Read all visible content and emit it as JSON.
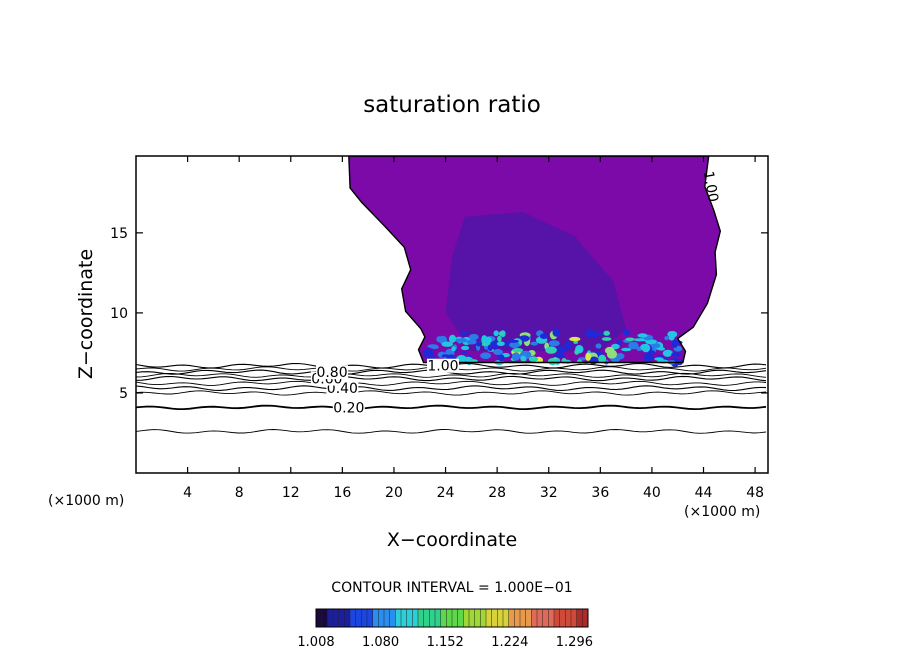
{
  "chart_data": {
    "type": "contour",
    "title": "saturation ratio",
    "xlabel": "X−coordinate",
    "ylabel": "Z−coordinate",
    "x_unit_label": "(×1000 m)",
    "y_unit_label": "(×1000 m)",
    "xlim": [
      0,
      49
    ],
    "ylim": [
      0,
      19.8
    ],
    "x_ticks": [
      4,
      8,
      12,
      16,
      20,
      24,
      28,
      32,
      36,
      40,
      44,
      48
    ],
    "y_ticks": [
      5,
      10,
      15
    ],
    "contour_interval_label": "CONTOUR INTERVAL = 1.000E−01",
    "contour_levels": [
      {
        "label": "0.20",
        "value": 0.2,
        "z": 4.1
      },
      {
        "label": "0.40",
        "value": 0.4,
        "z": 5.3
      },
      {
        "label": "0.60",
        "value": 0.6,
        "z": 5.9
      },
      {
        "label": "0.80",
        "value": 0.8,
        "z": 6.3
      },
      {
        "label": "1.00",
        "value": 1.0,
        "z": 6.7
      }
    ],
    "unlabeled_contours_z": [
      2.6,
      5.0,
      5.6,
      6.1,
      6.5
    ],
    "filled_region": {
      "description_value": "saturation ratio >= 1.0",
      "base_color": "#7b0aa8",
      "core_color": "#3a1aa8",
      "turbulent_layer_colors": [
        "#1e2ad8",
        "#2b7ce8",
        "#22c6e0",
        "#2ed1b0",
        "#8ee07a",
        "#d9e84a"
      ]
    },
    "colorbar": {
      "ticks": [
        "1.008",
        "1.080",
        "1.152",
        "1.224",
        "1.296"
      ],
      "colors": [
        "#1a0a3a",
        "#1c1ea0",
        "#1c46e0",
        "#2a8ef0",
        "#2ccfd8",
        "#2fd28a",
        "#5ed84a",
        "#9ed834",
        "#d8d23a",
        "#e89a4a",
        "#e06a5a",
        "#d04a3a",
        "#b02a2a"
      ]
    },
    "grid": false,
    "legend": "colorbar-bottom"
  }
}
